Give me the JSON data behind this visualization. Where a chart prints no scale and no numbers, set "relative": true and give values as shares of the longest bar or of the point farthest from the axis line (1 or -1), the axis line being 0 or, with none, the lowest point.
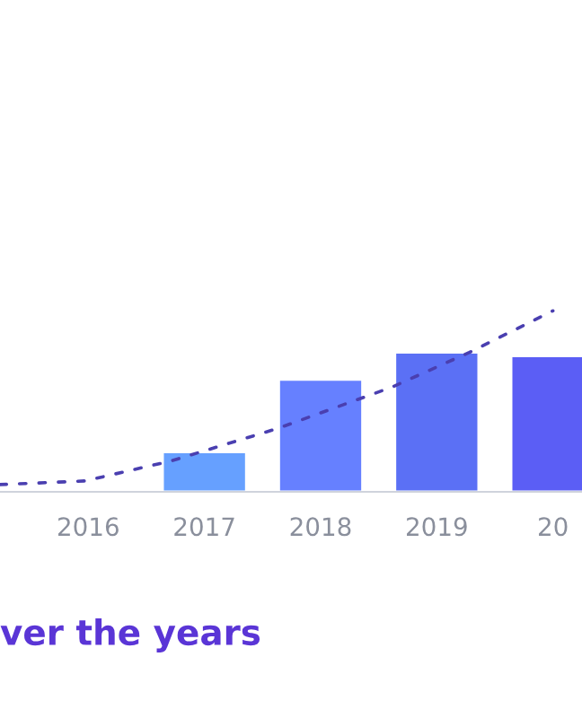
{
  "chart_data": {
    "type": "bar",
    "title": "ver the years",
    "relative": true,
    "x": [
      2016,
      2017,
      2018,
      2019,
      2020
    ],
    "xlim": [
      2015.24,
      2020.25
    ],
    "xticks": [
      2016,
      2017,
      2018,
      2019,
      {
        "value": 2020,
        "label": "20"
      }
    ],
    "tick_labels": "x",
    "grid": false,
    "legend": false,
    "series": [
      {
        "values": [
          0.01,
          0.22,
          0.62,
          0.77,
          0.75
        ],
        "colors": [
          "#a8dcea",
          "#66a0ff",
          "#6680ff",
          "#5b70f5",
          "#5b5ef5"
        ]
      },
      {
        "type": "line",
        "color": "#4a3fb0",
        "line_style": "dotted",
        "marker": "none",
        "x": [
          2015.24,
          2015.97,
          2016.71,
          2017.63,
          2018.62,
          2019.28,
          2020.0
        ],
        "values": [
          0.04,
          0.06,
          0.17,
          0.35,
          0.58,
          0.77,
          1.0
        ]
      }
    ]
  }
}
